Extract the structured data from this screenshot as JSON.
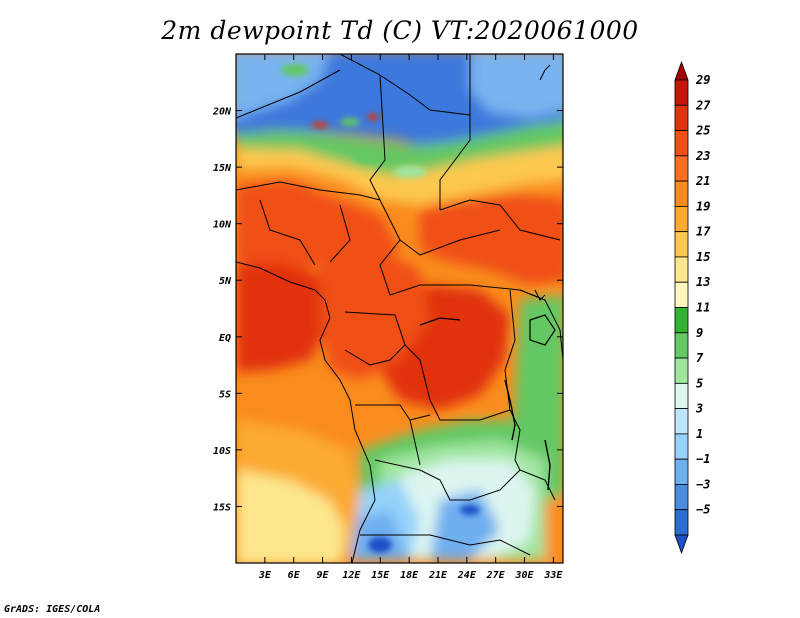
{
  "title": "2m dewpoint Td (C) VT:2020061000",
  "credit": "GrADS: IGES/COLA",
  "map": {
    "lon_range": [
      0,
      34
    ],
    "lat_range": [
      -20,
      25
    ],
    "lon_ticks": [
      "3E",
      "6E",
      "9E",
      "12E",
      "15E",
      "18E",
      "21E",
      "24E",
      "27E",
      "30E",
      "33E"
    ],
    "lon_tick_values": [
      3,
      6,
      9,
      12,
      15,
      18,
      21,
      24,
      27,
      30,
      33
    ],
    "lat_ticks": [
      "20N",
      "15N",
      "10N",
      "5N",
      "EQ",
      "5S",
      "10S",
      "15S"
    ],
    "lat_tick_values": [
      20,
      15,
      10,
      5,
      0,
      -5,
      -10,
      -15
    ]
  },
  "colorbar": {
    "labels": [
      "29",
      "27",
      "25",
      "23",
      "21",
      "19",
      "17",
      "15",
      "13",
      "11",
      "9",
      "7",
      "5",
      "3",
      "1",
      "−1",
      "−3",
      "−5"
    ],
    "colors": [
      "#a50000",
      "#c8140a",
      "#e1320f",
      "#f05014",
      "#fa6e1e",
      "#fa8c1e",
      "#fbaa30",
      "#fcc850",
      "#fde68c",
      "#fff8be",
      "#32b432",
      "#64c864",
      "#a0e6a0",
      "#dcf5f0",
      "#bee6fa",
      "#96d2fa",
      "#6eaff0",
      "#4b8cdc",
      "#2d6ed2",
      "#1e50c8"
    ],
    "legend_placement": "right"
  },
  "field_colors": {
    "sahara_blue": "#3c78dc",
    "sahara_light": "#78b4f0",
    "green_band": "#64c864",
    "tan": "#fcc850",
    "orange": "#fa8c1e",
    "dark_orange": "#f05014",
    "red_orange": "#e1320f",
    "pale_yellow": "#fde68c",
    "light_green": "#a0e6a0",
    "pale_blue": "#dcf5f0"
  }
}
